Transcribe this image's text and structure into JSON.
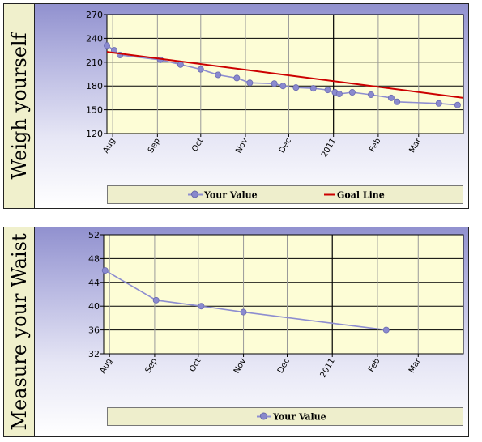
{
  "charts": [
    {
      "side_title": "Weigh yourself",
      "legend": [
        {
          "label": "Your Value",
          "color": "#8d8dd0",
          "marker": "circle"
        },
        {
          "label": "Goal Line",
          "color": "#cc0000",
          "marker": "none"
        }
      ]
    },
    {
      "side_title": "Measure your Waist",
      "legend": [
        {
          "label": "Your Value",
          "color": "#8d8dd0",
          "marker": "circle"
        }
      ]
    }
  ],
  "colors": {
    "plot_background": "#fdfdd6",
    "grid": "#9a9a9a",
    "series": "#8d8dd0",
    "goal": "#cc0000",
    "year_marker": "#000000"
  },
  "chart_data": [
    {
      "type": "line",
      "title": "",
      "xlabel": "",
      "ylabel": "",
      "ylim": [
        120,
        270
      ],
      "yticks": [
        120,
        150,
        180,
        210,
        240,
        270
      ],
      "xlim": [
        "2010-07-28",
        "2011-04-01"
      ],
      "x_tick_labels": [
        {
          "date": "2010-08-01",
          "label": "Aug"
        },
        {
          "date": "2010-09-01",
          "label": "Sep"
        },
        {
          "date": "2010-10-01",
          "label": "Oct"
        },
        {
          "date": "2010-11-01",
          "label": "Nov"
        },
        {
          "date": "2010-12-01",
          "label": "Dec"
        },
        {
          "date": "2011-01-01",
          "label": "2011"
        },
        {
          "date": "2011-02-01",
          "label": "Feb"
        },
        {
          "date": "2011-03-01",
          "label": "Mar"
        }
      ],
      "year_marker_date": "2011-01-01",
      "grid": true,
      "legend_position": "bottom",
      "series": [
        {
          "name": "Your Value",
          "x": [
            "2010-07-28",
            "2010-08-02",
            "2010-08-06",
            "2010-09-03",
            "2010-09-17",
            "2010-10-01",
            "2010-10-13",
            "2010-10-26",
            "2010-11-04",
            "2010-11-21",
            "2010-11-27",
            "2010-12-06",
            "2010-12-18",
            "2010-12-28",
            "2011-01-02",
            "2011-01-05",
            "2011-01-14",
            "2011-01-27",
            "2011-02-10",
            "2011-02-14",
            "2011-03-15",
            "2011-03-28"
          ],
          "values": [
            231,
            225,
            219,
            213,
            207,
            201,
            194,
            190,
            184,
            183,
            180,
            178,
            177,
            175,
            172,
            170,
            172,
            169,
            165,
            160,
            158,
            156
          ]
        },
        {
          "name": "Goal Line",
          "x": [
            "2010-07-28",
            "2011-04-01"
          ],
          "values": [
            223,
            165
          ]
        }
      ]
    },
    {
      "type": "line",
      "title": "",
      "xlabel": "",
      "ylabel": "",
      "ylim": [
        32,
        52
      ],
      "yticks": [
        32,
        36,
        40,
        44,
        48,
        52
      ],
      "xlim": [
        "2010-07-28",
        "2011-04-01"
      ],
      "x_tick_labels": [
        {
          "date": "2010-08-01",
          "label": "Aug"
        },
        {
          "date": "2010-09-01",
          "label": "Sep"
        },
        {
          "date": "2010-10-01",
          "label": "Oct"
        },
        {
          "date": "2010-11-01",
          "label": "Nov"
        },
        {
          "date": "2010-12-01",
          "label": "Dec"
        },
        {
          "date": "2011-01-01",
          "label": "2011"
        },
        {
          "date": "2011-02-01",
          "label": "Feb"
        },
        {
          "date": "2011-03-01",
          "label": "Mar"
        }
      ],
      "year_marker_date": "2011-01-01",
      "grid": true,
      "legend_position": "bottom",
      "series": [
        {
          "name": "Your Value",
          "x": [
            "2010-07-29",
            "2010-09-02",
            "2010-10-03",
            "2010-11-01",
            "2011-02-07"
          ],
          "values": [
            46,
            41,
            40,
            39,
            36
          ]
        }
      ]
    }
  ]
}
